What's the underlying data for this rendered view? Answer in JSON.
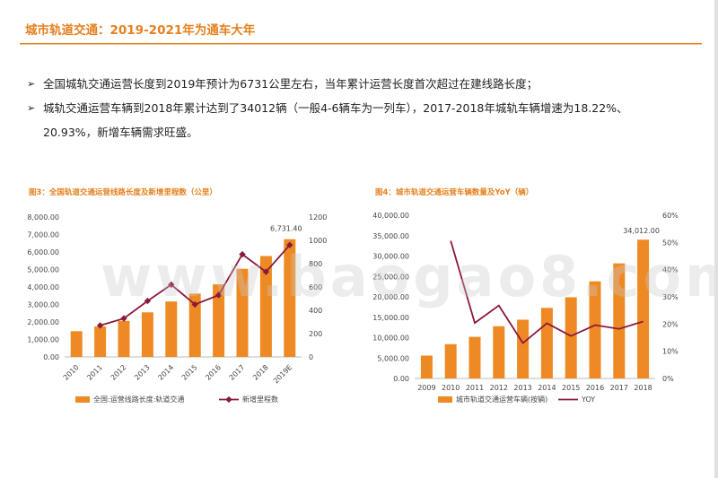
{
  "header": {
    "title": "城市轨道交通：2019-2021年为通车大年"
  },
  "bullets": [
    "全国城轨交通运营长度到2019年预计为6731公里左右，当年累计运营长度首次超过在建线路长度；",
    "城轨交通运营车辆到2018年累计达到了34012辆（一般4-6辆车为一列车），2017-2018年城轨车辆增速为18.22%、",
    "20.93%，新增车辆需求旺盛。"
  ],
  "bullet_marker": "➢",
  "watermark": "www.baogao8.com",
  "colors": {
    "accent": "#E5801E",
    "bar": "#EE8A24",
    "line": "#8B1A3A"
  },
  "chart_data": [
    {
      "type": "bar",
      "title": "图3：全国轨道交通运营线路长度及新增里程数（公里）",
      "categories": [
        "2010",
        "2011",
        "2012",
        "2013",
        "2014",
        "2015",
        "2016",
        "2017",
        "2018",
        "2019E"
      ],
      "series": [
        {
          "name": "全国:运营线路长度:轨道交通",
          "type": "bar",
          "axis": "left",
          "values": [
            1470,
            1740,
            2060,
            2550,
            3170,
            3620,
            4150,
            5040,
            5770,
            6731.4
          ]
        },
        {
          "name": "新增里程数",
          "type": "line",
          "axis": "right",
          "values": [
            null,
            270,
            330,
            480,
            620,
            450,
            530,
            880,
            730,
            960
          ]
        }
      ],
      "data_labels": [
        {
          "category": "2019E",
          "text": "6,731.40"
        }
      ],
      "left_axis": {
        "ticks": [
          "8,000.00",
          "7,000.00",
          "6,000.00",
          "5,000.00",
          "4,000.00",
          "3,000.00",
          "2,000.00",
          "1,000.00",
          "0.00"
        ],
        "ylim": [
          0,
          8000
        ]
      },
      "right_axis": {
        "ticks": [
          "1200",
          "1000",
          "800",
          "600",
          "400",
          "200",
          "0"
        ],
        "ylim": [
          0,
          1200
        ]
      },
      "legend": [
        "全国:运营线路长度:轨道交通",
        "新增里程数"
      ],
      "legend_placement": "bottom"
    },
    {
      "type": "bar",
      "title": "图4：城市轨道交通运营车辆数量及YoY（辆）",
      "categories": [
        "2009",
        "2010",
        "2011",
        "2012",
        "2013",
        "2014",
        "2015",
        "2016",
        "2017",
        "2018"
      ],
      "series": [
        {
          "name": "城市轨道交通运营车辆(按辆)",
          "type": "bar",
          "axis": "left",
          "values": [
            5600,
            8400,
            10200,
            12800,
            14400,
            17300,
            19900,
            23800,
            28200,
            34012
          ]
        },
        {
          "name": "YOY",
          "type": "line",
          "axis": "right",
          "values": [
            null,
            50.6,
            20.4,
            26.8,
            13.0,
            20.3,
            15.6,
            19.6,
            18.22,
            20.93
          ]
        }
      ],
      "data_labels": [
        {
          "category": "2018",
          "text": "34,012.00"
        }
      ],
      "left_axis": {
        "ticks": [
          "40,000.00",
          "35,000.00",
          "30,000.00",
          "25,000.00",
          "20,000.00",
          "15,000.00",
          "10,000.00",
          "5,000.00",
          "0.00"
        ],
        "ylim": [
          0,
          40000
        ]
      },
      "right_axis": {
        "ticks": [
          "60%",
          "50%",
          "40%",
          "30%",
          "20%",
          "10%",
          "0%"
        ],
        "ylim": [
          0,
          60
        ]
      },
      "legend": [
        "城市轨道交通运营车辆(按辆)",
        "YOY"
      ],
      "legend_placement": "bottom"
    }
  ]
}
